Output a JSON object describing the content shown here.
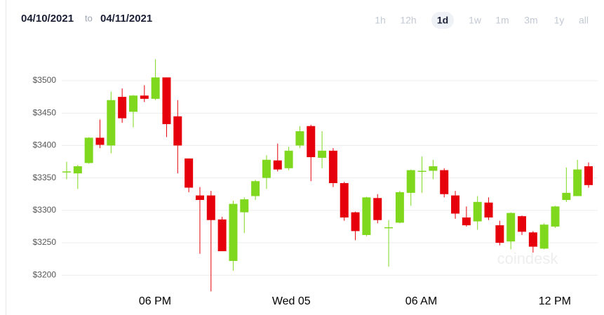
{
  "header": {
    "from": "04/10/2021",
    "separator": "to",
    "to": "04/11/2021",
    "ranges": [
      "1h",
      "12h",
      "1d",
      "1w",
      "1m",
      "3m",
      "1y",
      "all"
    ],
    "selected": "1d"
  },
  "chart_data": {
    "type": "candlestick",
    "watermark": "coindesk",
    "ylim": [
      3170,
      3540
    ],
    "yticks": [
      {
        "value": 3200,
        "label": "$3200"
      },
      {
        "value": 3250,
        "label": "$3250"
      },
      {
        "value": 3300,
        "label": "$3300"
      },
      {
        "value": 3350,
        "label": "$3350"
      },
      {
        "value": 3400,
        "label": "$3400"
      },
      {
        "value": 3450,
        "label": "$3450"
      },
      {
        "value": 3500,
        "label": "$3500"
      }
    ],
    "grid": true,
    "up_color": "#7fd81e",
    "down_color": "#e6000b",
    "categories": [
      null,
      null,
      null,
      null,
      null,
      null,
      null,
      "06 PM",
      null,
      null,
      null,
      null,
      null,
      null,
      null,
      null,
      null,
      null,
      null,
      "Wed 05",
      null,
      null,
      null,
      null,
      null,
      null,
      null,
      null,
      null,
      null,
      null,
      "06 AM",
      null,
      null,
      null,
      null,
      null,
      null,
      null,
      null,
      null,
      null,
      null,
      "12 PM",
      null,
      null,
      null,
      null
    ],
    "open": [
      3360,
      3357,
      3373,
      3412,
      3400,
      3475,
      3452,
      3477,
      3472,
      3505,
      3445,
      3380,
      3323,
      3323,
      3286,
      3222,
      3297,
      3322,
      3350,
      3377,
      3365,
      3400,
      3430,
      3381,
      3392,
      3342,
      3297,
      3262,
      3319,
      3274,
      3281,
      3327,
      3360,
      3361,
      3362,
      3323,
      3289,
      3283,
      3312,
      3277,
      3252,
      3291,
      3266,
      3241,
      3275,
      3316,
      3322,
      3368
    ],
    "high": [
      3375,
      3370,
      3413,
      3440,
      3483,
      3488,
      3478,
      3493,
      3533,
      3505,
      3470,
      3380,
      3336,
      3330,
      3290,
      3315,
      3320,
      3347,
      3385,
      3403,
      3398,
      3430,
      3432,
      3422,
      3396,
      3344,
      3298,
      3321,
      3325,
      3285,
      3330,
      3363,
      3383,
      3378,
      3365,
      3330,
      3306,
      3322,
      3320,
      3284,
      3297,
      3292,
      3268,
      3280,
      3307,
      3366,
      3378,
      3374
    ],
    "low": [
      3348,
      3333,
      3372,
      3396,
      3388,
      3435,
      3428,
      3467,
      3470,
      3413,
      3357,
      3328,
      3233,
      3175,
      3237,
      3207,
      3265,
      3316,
      3333,
      3360,
      3362,
      3396,
      3345,
      3365,
      3336,
      3284,
      3254,
      3260,
      3280,
      3213,
      3280,
      3307,
      3327,
      3348,
      3320,
      3287,
      3275,
      3270,
      3285,
      3246,
      3240,
      3262,
      3235,
      3240,
      3273,
      3313,
      3322,
      3335
    ],
    "close": [
      3360,
      3368,
      3412,
      3401,
      3470,
      3442,
      3477,
      3472,
      3505,
      3433,
      3400,
      3335,
      3316,
      3285,
      3237,
      3310,
      3317,
      3345,
      3378,
      3363,
      3392,
      3422,
      3382,
      3392,
      3342,
      3289,
      3268,
      3320,
      3285,
      3274,
      3328,
      3362,
      3361,
      3368,
      3325,
      3295,
      3277,
      3313,
      3289,
      3250,
      3296,
      3267,
      3244,
      3278,
      3306,
      3327,
      3363,
      3339
    ]
  }
}
